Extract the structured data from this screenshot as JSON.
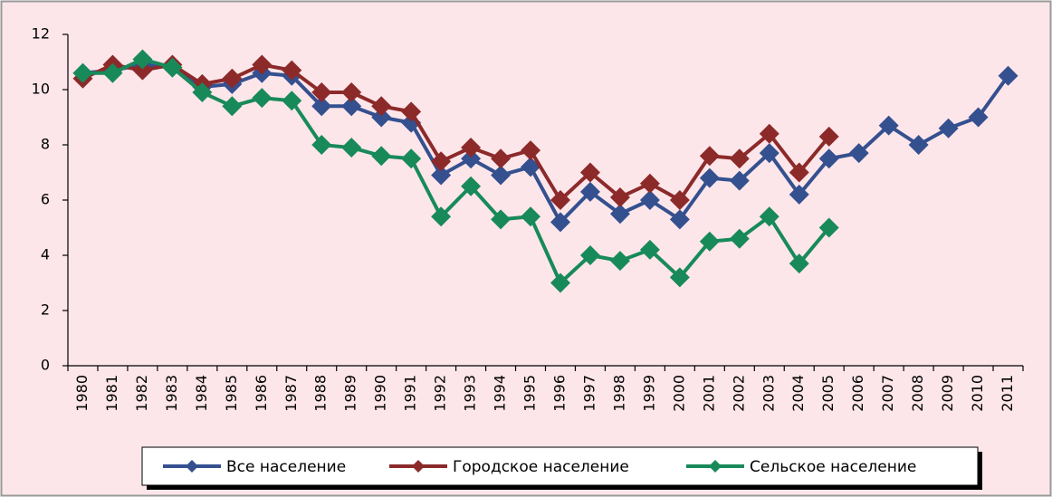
{
  "chart_data": {
    "type": "line",
    "categories": [
      "1980",
      "1981",
      "1982",
      "1983",
      "1984",
      "1985",
      "1986",
      "1987",
      "1988",
      "1989",
      "1990",
      "1991",
      "1992",
      "1993",
      "1994",
      "1995",
      "1996",
      "1997",
      "1998",
      "1999",
      "2000",
      "2001",
      "2002",
      "2003",
      "2004",
      "2005",
      "2006",
      "2007",
      "2008",
      "2009",
      "2010",
      "2011"
    ],
    "series": [
      {
        "name": "Все население",
        "color": "#34508f",
        "values": [
          10.6,
          10.7,
          10.9,
          10.8,
          10.1,
          10.2,
          10.6,
          10.5,
          9.4,
          9.4,
          9.0,
          8.8,
          6.9,
          7.5,
          6.9,
          7.2,
          5.2,
          6.3,
          5.5,
          6.0,
          5.3,
          6.8,
          6.7,
          7.7,
          6.2,
          7.5,
          7.7,
          8.7,
          8.0,
          8.6,
          9.0,
          10.5
        ]
      },
      {
        "name": "Городское население",
        "color": "#8c2a2a",
        "values": [
          10.4,
          10.9,
          10.7,
          10.9,
          10.2,
          10.4,
          10.9,
          10.7,
          9.9,
          9.9,
          9.4,
          9.2,
          7.4,
          7.9,
          7.5,
          7.8,
          6.0,
          7.0,
          6.1,
          6.6,
          6.0,
          7.6,
          7.5,
          8.4,
          7.0,
          8.3,
          null,
          null,
          null,
          null,
          null,
          null
        ]
      },
      {
        "name": "Сельское население",
        "color": "#188a5a",
        "values": [
          10.6,
          10.6,
          11.1,
          10.8,
          9.9,
          9.4,
          9.7,
          9.6,
          8.0,
          7.9,
          7.6,
          7.5,
          5.4,
          6.5,
          5.3,
          5.4,
          3.0,
          4.0,
          3.8,
          4.2,
          3.2,
          4.5,
          4.6,
          5.4,
          3.7,
          5.0,
          null,
          null,
          null,
          null,
          null,
          null
        ]
      }
    ],
    "ylim": [
      0,
      12
    ],
    "yticks": [
      0,
      2,
      4,
      6,
      8,
      10,
      12
    ],
    "grid": false
  }
}
